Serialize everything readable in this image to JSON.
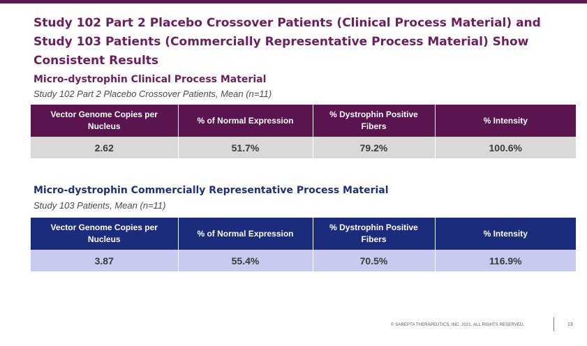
{
  "slide": {
    "title": "Study 102 Part 2 Placebo Crossover Patients (Clinical Process Material) and Study 103 Patients (Commercially Representative Process Material) Show Consistent Results"
  },
  "section1": {
    "heading": "Micro-dystrophin Clinical Process Material",
    "subheading": "Study 102 Part 2 Placebo Crossover Patients, Mean (n=11)",
    "header_color": "#5a1550",
    "columns": [
      "Vector Genome Copies per Nucleus",
      "% of Normal Expression",
      "% Dystrophin Positive Fibers",
      "% Intensity"
    ],
    "values": [
      "2.62",
      "51.7%",
      "79.2%",
      "100.6%"
    ]
  },
  "section2": {
    "heading": "Micro-dystrophin Commercially Representative Process Material",
    "subheading": "Study 103 Patients, Mean (n=11)",
    "header_color": "#1b2c7c",
    "columns": [
      "Vector Genome Copies per Nucleus",
      "% of Normal Expression",
      "% Dystrophin Positive Fibers",
      "% Intensity"
    ],
    "values": [
      "3.87",
      "55.4%",
      "70.5%",
      "116.9%"
    ]
  },
  "footer": {
    "copyright": "© SAREPTA THERAPEUTICS, INC. 2021.  ALL RIGHTS RESERVED.",
    "page_number": "13"
  }
}
